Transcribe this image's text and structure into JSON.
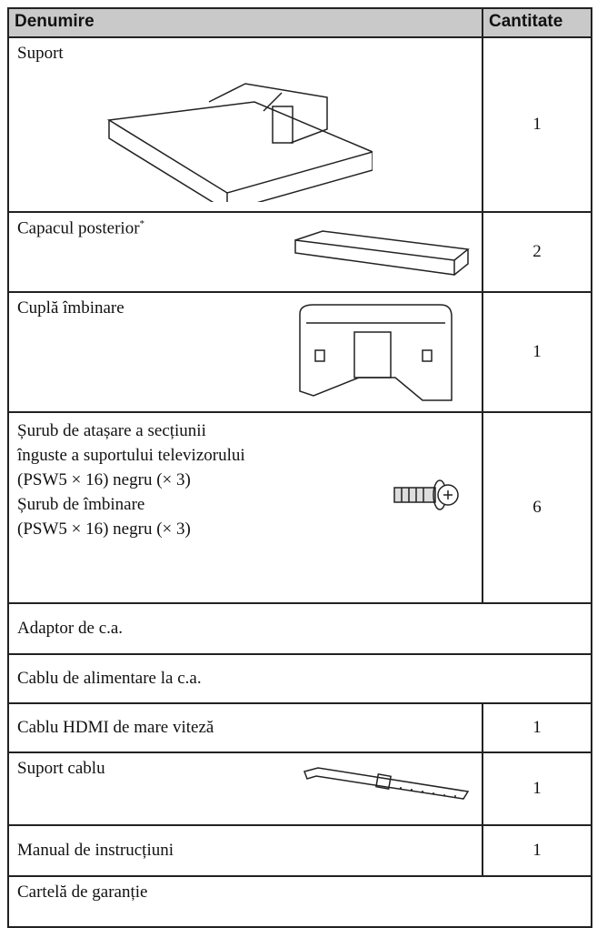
{
  "header": {
    "columns": [
      "Denumire",
      "Cantitate"
    ]
  },
  "rows": [
    {
      "name": "Suport",
      "quantity": 1
    },
    {
      "name": "Capacul posterior",
      "note": "*",
      "quantity": 2
    },
    {
      "name": "Cuplă îmbinare",
      "quantity": 1
    },
    {
      "lines": [
        "Șurub de atașare a secțiunii",
        "înguste a suportului televizorului",
        "(PSW5 × 16) negru (× 3)",
        "Șurub de îmbinare",
        "(PSW5 × 16) negru (× 3)"
      ],
      "quantity": 6
    },
    {
      "name": "Adaptor de c.a."
    },
    {
      "name": "Cablu de alimentare la c.a."
    },
    {
      "name": "Cablu HDMI de mare viteză",
      "quantity": 1
    },
    {
      "name": "Suport cablu",
      "quantity": 1
    },
    {
      "name": "Manual de instrucțiuni",
      "quantity": 1
    },
    {
      "name": "Cartelă de garanție"
    }
  ]
}
